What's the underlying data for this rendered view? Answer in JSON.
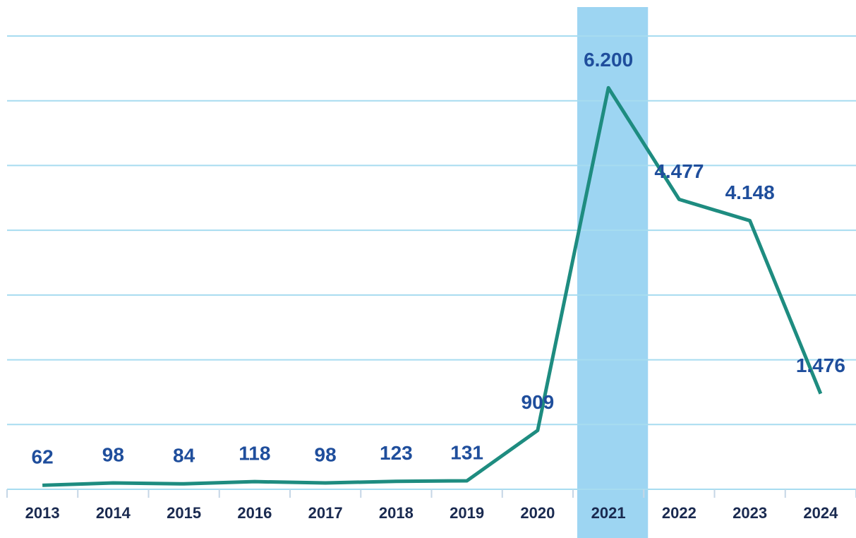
{
  "chart_data": {
    "type": "line",
    "categories": [
      "2013",
      "2014",
      "2015",
      "2016",
      "2017",
      "2018",
      "2019",
      "2020",
      "2021",
      "2022",
      "2023",
      "2024"
    ],
    "values": [
      62,
      98,
      84,
      118,
      98,
      123,
      131,
      909,
      6200,
      4477,
      4148,
      1476
    ],
    "value_labels": [
      "62",
      "98",
      "84",
      "118",
      "98",
      "123",
      "131",
      "909",
      "6.200",
      "4.477",
      "4.148",
      "1.476"
    ],
    "color": "#1e8c80",
    "highlight": "2021",
    "ylim": [
      0,
      7000
    ],
    "yticks": [
      0,
      1000,
      2000,
      3000,
      4000,
      5000,
      6000,
      7000
    ],
    "grid": true
  }
}
